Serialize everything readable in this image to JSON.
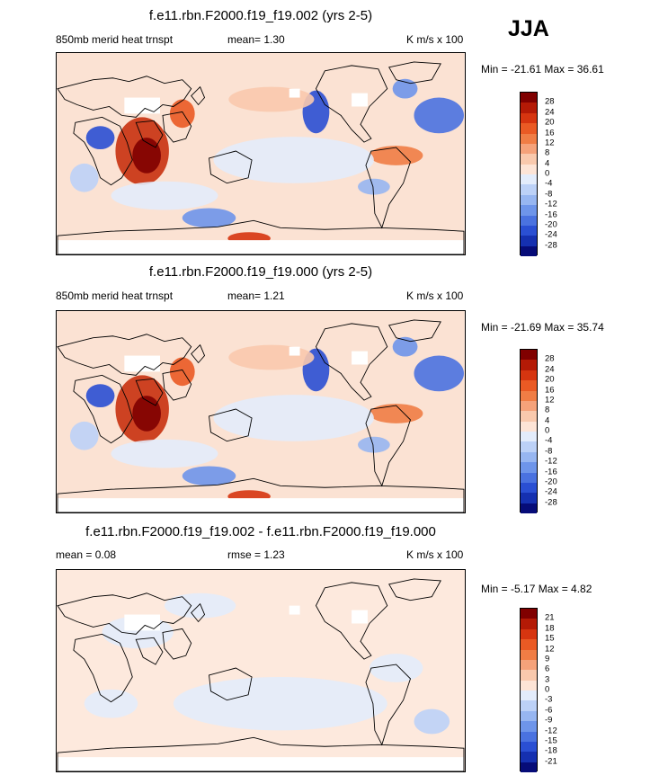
{
  "season": "JJA",
  "panels": [
    {
      "title": "f.e11.rbn.F2000.f19_f19.002 (yrs 2-5)",
      "left_label": "850mb merid heat trnspt",
      "mean_label": "mean=   1.30",
      "units": "K m/s x 100",
      "minmax": "Min = -21.61 Max =  36.61",
      "levels": [
        "28",
        "24",
        "20",
        "16",
        "12",
        "8",
        "4",
        "0",
        "-4",
        "-8",
        "-12",
        "-16",
        "-20",
        "-24",
        "-28"
      ],
      "colors": [
        "#800000",
        "#b41a06",
        "#d63510",
        "#ea5a24",
        "#f07d45",
        "#f5a27a",
        "#f9c9ad",
        "#fde4d6",
        "#e3ecfb",
        "#bcd1f7",
        "#97b6f1",
        "#6e95ea",
        "#4a72e0",
        "#2a4fd3",
        "#1530b0",
        "#060c78"
      ]
    },
    {
      "title": "f.e11.rbn.F2000.f19_f19.000 (yrs 2-5)",
      "left_label": "850mb merid heat trnspt",
      "mean_label": "mean=   1.21",
      "units": "K m/s x 100",
      "minmax": "Min = -21.69 Max =  35.74",
      "levels": [
        "28",
        "24",
        "20",
        "16",
        "12",
        "8",
        "4",
        "0",
        "-4",
        "-8",
        "-12",
        "-16",
        "-20",
        "-24",
        "-28"
      ],
      "colors": [
        "#800000",
        "#b41a06",
        "#d63510",
        "#ea5a24",
        "#f07d45",
        "#f5a27a",
        "#f9c9ad",
        "#fde4d6",
        "#e3ecfb",
        "#bcd1f7",
        "#97b6f1",
        "#6e95ea",
        "#4a72e0",
        "#2a4fd3",
        "#1530b0",
        "#060c78"
      ]
    },
    {
      "title": "f.e11.rbn.F2000.f19_f19.002 - f.e11.rbn.F2000.f19_f19.000",
      "left_label": "mean =   0.08",
      "mean_label": "rmse =   1.23",
      "units": "K m/s x 100",
      "minmax": "Min =  -5.17 Max =   4.82",
      "levels": [
        "21",
        "18",
        "15",
        "12",
        "9",
        "6",
        "3",
        "0",
        "-3",
        "-6",
        "-9",
        "-12",
        "-15",
        "-18",
        "-21"
      ],
      "colors": [
        "#800000",
        "#b41a06",
        "#d63510",
        "#ea5a24",
        "#f07d45",
        "#f5a27a",
        "#f9c9ad",
        "#fde4d6",
        "#e3ecfb",
        "#bcd1f7",
        "#97b6f1",
        "#6e95ea",
        "#4a72e0",
        "#2a4fd3",
        "#1530b0",
        "#060c78"
      ]
    }
  ]
}
